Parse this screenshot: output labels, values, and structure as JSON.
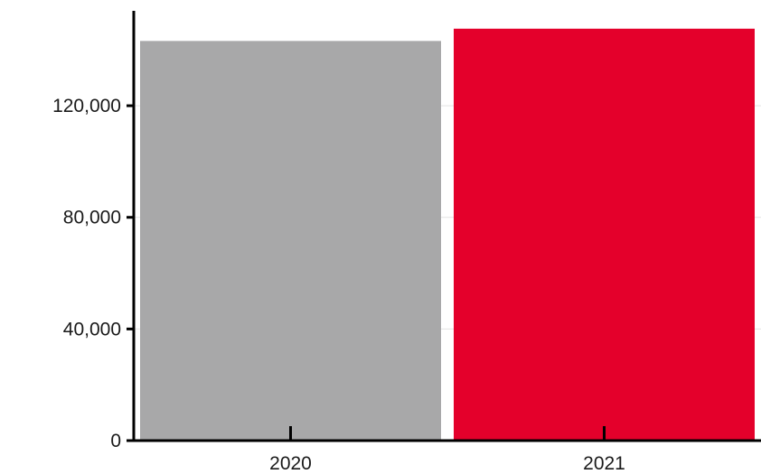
{
  "chart_data": {
    "type": "bar",
    "categories": [
      "2020",
      "2021"
    ],
    "values": [
      143200,
      147600
    ],
    "colors": [
      "#a8a8a9",
      "#e4002b"
    ],
    "ylim": [
      0,
      154000
    ],
    "yticks": [
      0,
      40000,
      80000,
      120000
    ],
    "ytick_labels": [
      "0",
      "40,000",
      "80,000",
      "120,000"
    ],
    "grid": true,
    "legend": "none"
  }
}
